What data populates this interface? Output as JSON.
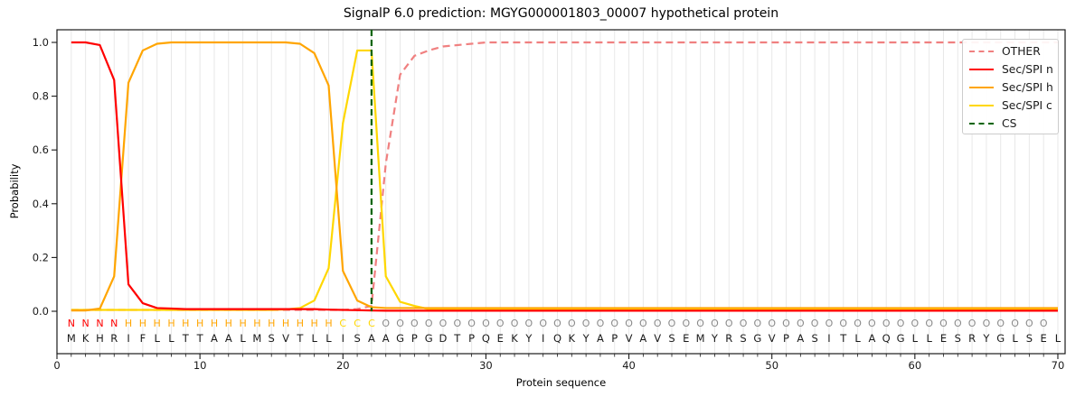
{
  "title": "SignalP 6.0 prediction: MGYG000001803_00007 hypothetical protein",
  "chart_data": {
    "type": "line",
    "title": "SignalP 6.0 prediction: MGYG000001803_00007 hypothetical protein",
    "xlabel": "Protein sequence",
    "ylabel": "Probability",
    "xlim": [
      0,
      70.5
    ],
    "ylim": [
      -0.16,
      1.05
    ],
    "xticks": [
      0,
      10,
      20,
      30,
      40,
      50,
      60,
      70
    ],
    "yticks": [
      0,
      0.2,
      0.4,
      0.6,
      0.8,
      1.0
    ],
    "grid": "vertical line at every residue position",
    "legend_position": "upper right",
    "x_positions": "residues 1 to 70",
    "series": [
      {
        "name": "OTHER",
        "color": "#f08080",
        "dash": true,
        "values": [
          0.005,
          0.005,
          0.005,
          0.005,
          0.005,
          0.005,
          0.005,
          0.005,
          0.005,
          0.005,
          0.005,
          0.005,
          0.005,
          0.005,
          0.005,
          0.005,
          0.005,
          0.005,
          0.005,
          0.005,
          0.008,
          0.02,
          0.55,
          0.88,
          0.95,
          0.97,
          0.985,
          0.99,
          0.995,
          1.0,
          1.0,
          1.0,
          1.0,
          1.0,
          1.0,
          1.0,
          1.0,
          1.0,
          1.0,
          1.0,
          1.0,
          1.0,
          1.0,
          1.0,
          1.0,
          1.0,
          1.0,
          1.0,
          1.0,
          1.0,
          1.0,
          1.0,
          1.0,
          1.0,
          1.0,
          1.0,
          1.0,
          1.0,
          1.0,
          1.0,
          1.0,
          1.0,
          1.0,
          1.0,
          1.0,
          1.0,
          1.0,
          1.0,
          1.0,
          1.0
        ]
      },
      {
        "name": "Sec/SPI n",
        "color": "#ff0000",
        "dash": false,
        "values": [
          1.0,
          1.0,
          0.99,
          0.86,
          0.1,
          0.03,
          0.012,
          0.01,
          0.008,
          0.008,
          0.008,
          0.008,
          0.008,
          0.008,
          0.008,
          0.008,
          0.008,
          0.008,
          0.006,
          0.005,
          0.004,
          0.003,
          0.002,
          0.002,
          0.002,
          0.002,
          0.002,
          0.002,
          0.002,
          0.002,
          0.002,
          0.002,
          0.002,
          0.002,
          0.002,
          0.002,
          0.002,
          0.002,
          0.002,
          0.002,
          0.002,
          0.002,
          0.002,
          0.002,
          0.002,
          0.002,
          0.002,
          0.002,
          0.002,
          0.002,
          0.002,
          0.002,
          0.002,
          0.002,
          0.002,
          0.002,
          0.002,
          0.002,
          0.002,
          0.002,
          0.002,
          0.002,
          0.002,
          0.002,
          0.002,
          0.002,
          0.002,
          0.002,
          0.002,
          0.002
        ]
      },
      {
        "name": "Sec/SPI h",
        "color": "#ffa500",
        "dash": false,
        "values": [
          0.003,
          0.003,
          0.01,
          0.13,
          0.85,
          0.97,
          0.995,
          1.0,
          1.0,
          1.0,
          1.0,
          1.0,
          1.0,
          1.0,
          1.0,
          1.0,
          0.995,
          0.96,
          0.84,
          0.15,
          0.04,
          0.015,
          0.012,
          0.012,
          0.012,
          0.012,
          0.012,
          0.012,
          0.012,
          0.012,
          0.012,
          0.012,
          0.012,
          0.012,
          0.012,
          0.012,
          0.012,
          0.012,
          0.012,
          0.012,
          0.012,
          0.012,
          0.012,
          0.012,
          0.012,
          0.012,
          0.012,
          0.012,
          0.012,
          0.012,
          0.012,
          0.012,
          0.012,
          0.012,
          0.012,
          0.012,
          0.012,
          0.012,
          0.012,
          0.012,
          0.012,
          0.012,
          0.012,
          0.012,
          0.012,
          0.012,
          0.012,
          0.012,
          0.012,
          0.012
        ]
      },
      {
        "name": "Sec/SPI c",
        "color": "#ffd700",
        "dash": false,
        "values": [
          0.005,
          0.005,
          0.005,
          0.005,
          0.005,
          0.005,
          0.005,
          0.005,
          0.005,
          0.005,
          0.005,
          0.005,
          0.005,
          0.005,
          0.005,
          0.007,
          0.012,
          0.04,
          0.16,
          0.7,
          0.97,
          0.97,
          0.13,
          0.035,
          0.02,
          0.008,
          0.008,
          0.008,
          0.008,
          0.008,
          0.008,
          0.008,
          0.008,
          0.008,
          0.008,
          0.008,
          0.008,
          0.008,
          0.008,
          0.008,
          0.008,
          0.008,
          0.008,
          0.008,
          0.008,
          0.008,
          0.008,
          0.008,
          0.008,
          0.008,
          0.008,
          0.008,
          0.008,
          0.008,
          0.008,
          0.008,
          0.008,
          0.008,
          0.008,
          0.008,
          0.008,
          0.008,
          0.008,
          0.008,
          0.008,
          0.008,
          0.008,
          0.008,
          0.008,
          0.008
        ]
      },
      {
        "name": "CS",
        "color": "#006400",
        "dash": true,
        "vline_x": 22
      }
    ],
    "sequence": "MKHRIFLLTTAALMSVTLLISAAGPGDTPQEKYIQKYAPVAVSEMYRSGVPASITLAQGLLESRYGLSEL",
    "regions": "NNNNHHHHHHHHHHHHHHHCCCOOOOOOOOOOOOOOOOOOOOOOOOOOOOOOOOOOOOOOOOOOOOOOO",
    "region_colors": {
      "N": "#ff0000",
      "H": "#ffa500",
      "C": "#ffd700",
      "O": "#8a8a8a"
    },
    "sequence_color": "#1a1a1a",
    "grid_color": "#e8e8e8",
    "spine_color": "#1a1a1a"
  }
}
